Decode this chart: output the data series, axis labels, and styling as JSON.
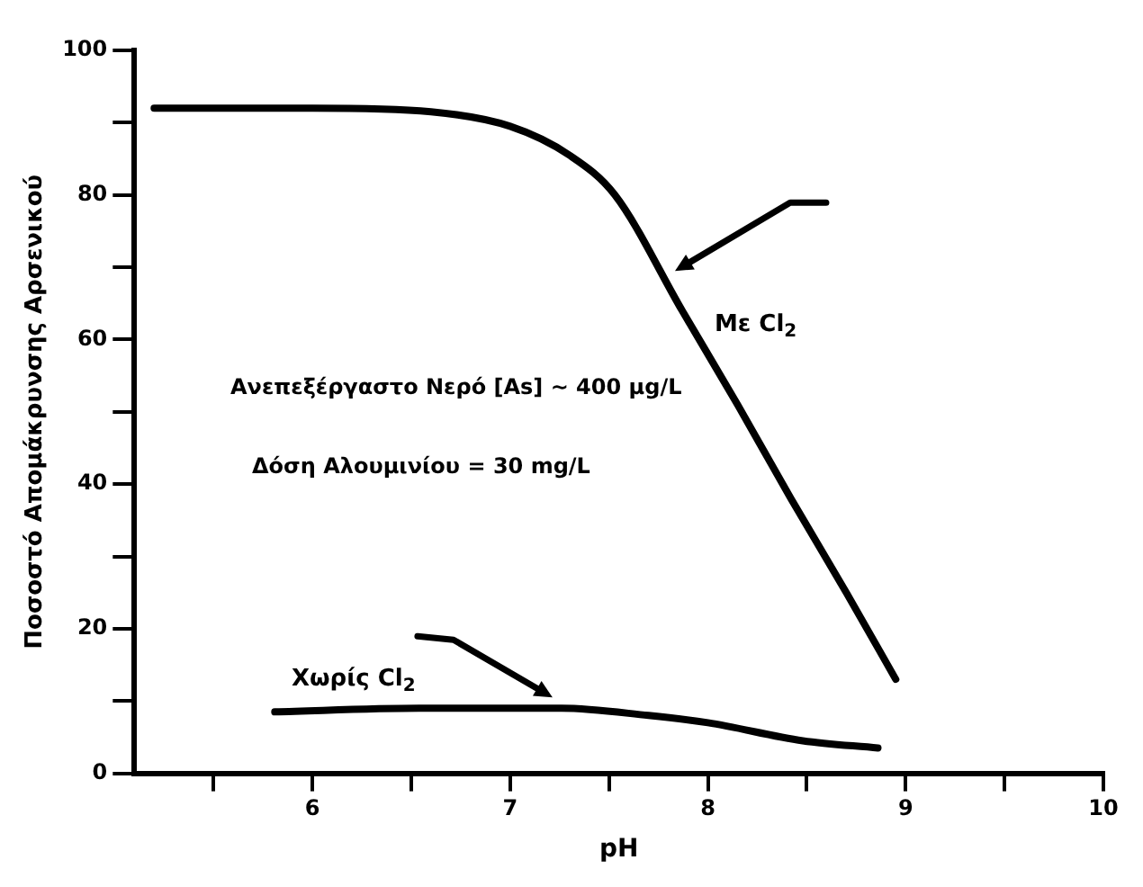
{
  "chart_data": {
    "type": "line",
    "xlabel": "pH",
    "ylabel": "Ποσοστό Απομάκρυνσης Αρσενικού",
    "series": [
      {
        "name": "Με Cl$_{2}$",
        "color": "#000000",
        "x": [
          5.2,
          6,
          6.6,
          7.0,
          7.3,
          7.53,
          7.87,
          8.15,
          8.42,
          8.7,
          8.95
        ],
        "values": [
          92,
          92,
          91.5,
          89.5,
          85.5,
          80,
          64,
          51,
          38,
          25,
          13
        ]
      },
      {
        "name": "Χωρίς Cl$_{2}$",
        "color": "#000000",
        "x": [
          5.81,
          6.54,
          7.26,
          7.7,
          8.0,
          8.48,
          8.86
        ],
        "values": [
          8.5,
          9,
          9,
          8,
          7,
          4.5,
          3.5
        ]
      }
    ],
    "annotations": [
      "Ανεπεξέργαστο Νερό [As] ~ 400 μg/L",
      "Δόση Αλουμινίου = 30 mg/L"
    ],
    "xlim": [
      5.1,
      10
    ],
    "xticks": [
      {
        "value": 5.5,
        "label": null
      },
      6,
      {
        "value": 6.5,
        "label": null
      },
      7,
      {
        "value": 7.5,
        "label": null
      },
      8,
      {
        "value": 8.5,
        "label": null
      },
      9,
      {
        "value": 9.5,
        "label": null
      },
      10
    ],
    "ylim": [
      0,
      100
    ],
    "yticks": [
      0,
      {
        "value": 10,
        "label": null
      },
      20,
      {
        "value": 30,
        "label": null
      },
      40,
      {
        "value": 50,
        "label": null
      },
      60,
      {
        "value": 70,
        "label": null
      },
      80,
      {
        "value": 90,
        "label": null
      },
      100
    ],
    "grid": false,
    "legend": false,
    "marker": "none",
    "line_style": "solid"
  }
}
